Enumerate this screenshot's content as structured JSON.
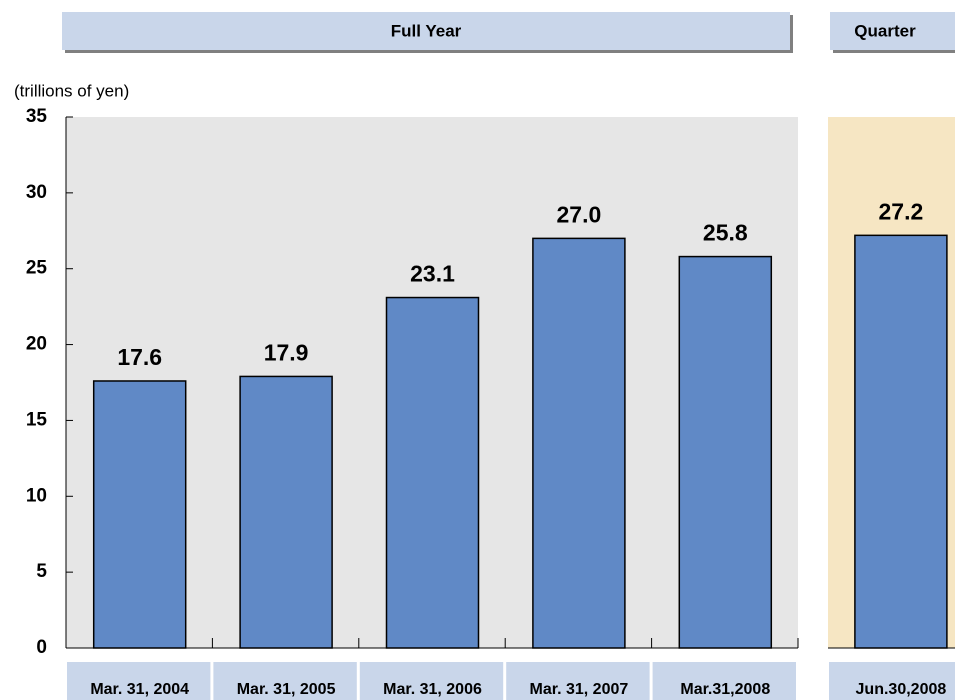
{
  "chart_data": {
    "type": "bar",
    "y_label": "(trillions of yen)",
    "color": "#6089c6",
    "ylim": [
      0,
      35
    ],
    "yticks": [
      0,
      5,
      10,
      15,
      20,
      25,
      30,
      35
    ],
    "panels": [
      {
        "title": "Full Year",
        "categories": [
          "Mar. 31, 2004",
          "Mar. 31, 2005",
          "Mar. 31, 2006",
          "Mar. 31, 2007",
          "Mar.31,2008"
        ],
        "values": [
          17.6,
          17.9,
          23.1,
          27.0,
          25.8
        ],
        "value_labels": [
          "17.6",
          "17.9",
          "23.1",
          "27.0",
          "25.8"
        ]
      },
      {
        "title": "Quarter",
        "categories": [
          "Jun.30,2008"
        ],
        "values": [
          27.2
        ],
        "value_labels": [
          "27.2"
        ]
      }
    ]
  }
}
